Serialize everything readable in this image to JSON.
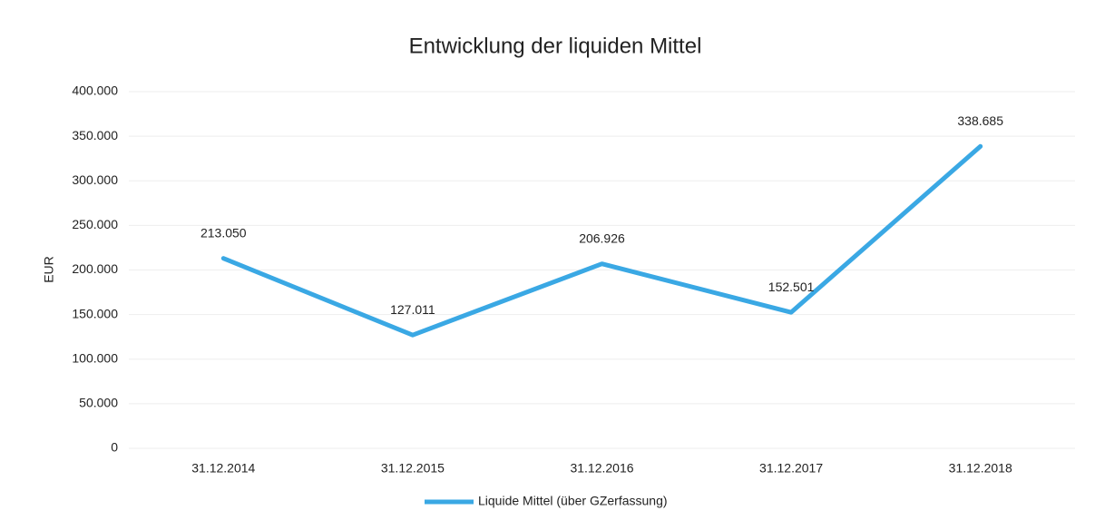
{
  "chart_data": {
    "type": "line",
    "title": "Entwicklung der liquiden Mittel",
    "y_label": "EUR",
    "categories": [
      "31.12.2014",
      "31.12.2015",
      "31.12.2016",
      "31.12.2017",
      "31.12.2018"
    ],
    "series": [
      {
        "name": "Liquide Mittel (über GZerfassung)",
        "color": "#3aa8e4",
        "values": [
          213050,
          127011,
          206926,
          152501,
          338685
        ],
        "value_labels": [
          "213.050",
          "127.011",
          "206.926",
          "152.501",
          "338.685"
        ]
      }
    ],
    "ylim": [
      0,
      400000
    ],
    "yticks": [
      0,
      {
        "value": 50000,
        "label": "50.000"
      },
      {
        "value": 100000,
        "label": "100.000"
      },
      {
        "value": 150000,
        "label": "150.000"
      },
      {
        "value": 200000,
        "label": "200.000"
      },
      {
        "value": 250000,
        "label": "250.000"
      },
      {
        "value": 300000,
        "label": "300.000"
      },
      {
        "value": 350000,
        "label": "350.000"
      },
      {
        "value": 400000,
        "label": "400.000"
      }
    ],
    "grid": true,
    "legend": "bottom"
  }
}
